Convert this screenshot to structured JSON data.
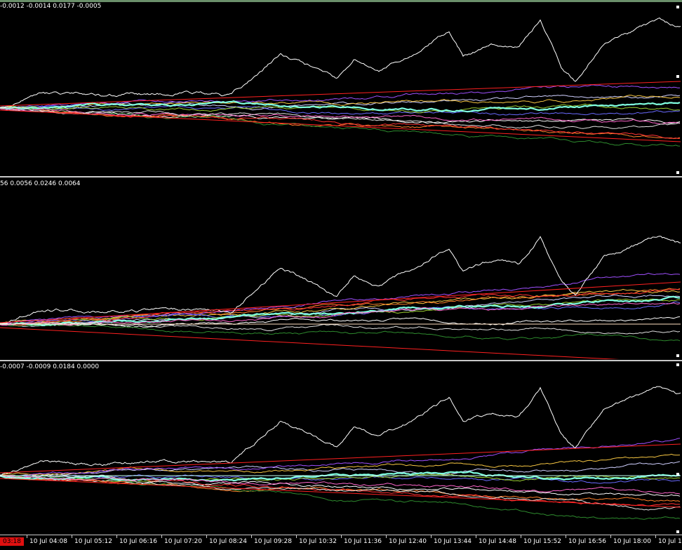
{
  "panes": [
    {
      "label": "-0.0012 -0.0014 0.0177 -0.0005"
    },
    {
      "label": "56 0.0056 0.0246 0.0064"
    },
    {
      "label": "-0.0007 -0.0009 0.0184 0.0000"
    }
  ],
  "time_axis": {
    "current_time_badge": "03:18",
    "labels": [
      "10 Jul 04:08",
      "10 Jul 05:12",
      "10 Jul 06:16",
      "10 Jul 07:20",
      "10 Jul 08:24",
      "10 Jul 09:28",
      "10 Jul 10:32",
      "10 Jul 11:36",
      "10 Jul 12:40",
      "10 Jul 13:44",
      "10 Jul 14:48",
      "10 Jul 15:52",
      "10 Jul 16:56",
      "10 Jul 18:00",
      "10 Jul 1"
    ]
  },
  "colors": {
    "background": "#000000",
    "separator": "#c8c8c8",
    "badge": "#e01010",
    "series": [
      "#ffffff",
      "#d0d0ff",
      "#f5c542",
      "#ff7f2a",
      "#a050ff",
      "#6a6aff",
      "#9acd32",
      "#ff3333",
      "#2e8b2e",
      "#80ffe0",
      "#ff66cc",
      "#e0e0e0"
    ]
  }
}
